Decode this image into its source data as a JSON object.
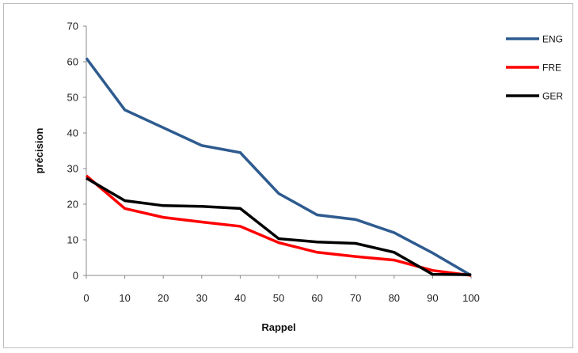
{
  "chart_data": {
    "type": "line",
    "x": [
      0,
      10,
      20,
      30,
      40,
      50,
      60,
      70,
      80,
      90,
      100
    ],
    "categories": [
      "0",
      "10",
      "20",
      "30",
      "40",
      "50",
      "60",
      "70",
      "80",
      "90",
      "100"
    ],
    "series": [
      {
        "name": "ENG",
        "color": "#2e5b8f",
        "values": [
          61,
          46.5,
          41.5,
          36.5,
          34.5,
          23,
          17,
          15.7,
          12,
          6.3,
          0
        ]
      },
      {
        "name": "FRE",
        "color": "#ff0000",
        "values": [
          28,
          18.8,
          16.3,
          15,
          13.8,
          9.2,
          6.5,
          5.3,
          4.3,
          1.4,
          0
        ]
      },
      {
        "name": "GER",
        "color": "#000000",
        "values": [
          27.3,
          21,
          19.6,
          19.4,
          18.8,
          10.3,
          9.4,
          9,
          6.5,
          0.3,
          0.2
        ]
      }
    ],
    "xlabel": "Rappel",
    "ylabel": "précision",
    "ylim": [
      0,
      70
    ],
    "yticks": [
      "0",
      "10",
      "20",
      "30",
      "40",
      "50",
      "60",
      "70"
    ],
    "grid": false,
    "legend_position": "right"
  }
}
